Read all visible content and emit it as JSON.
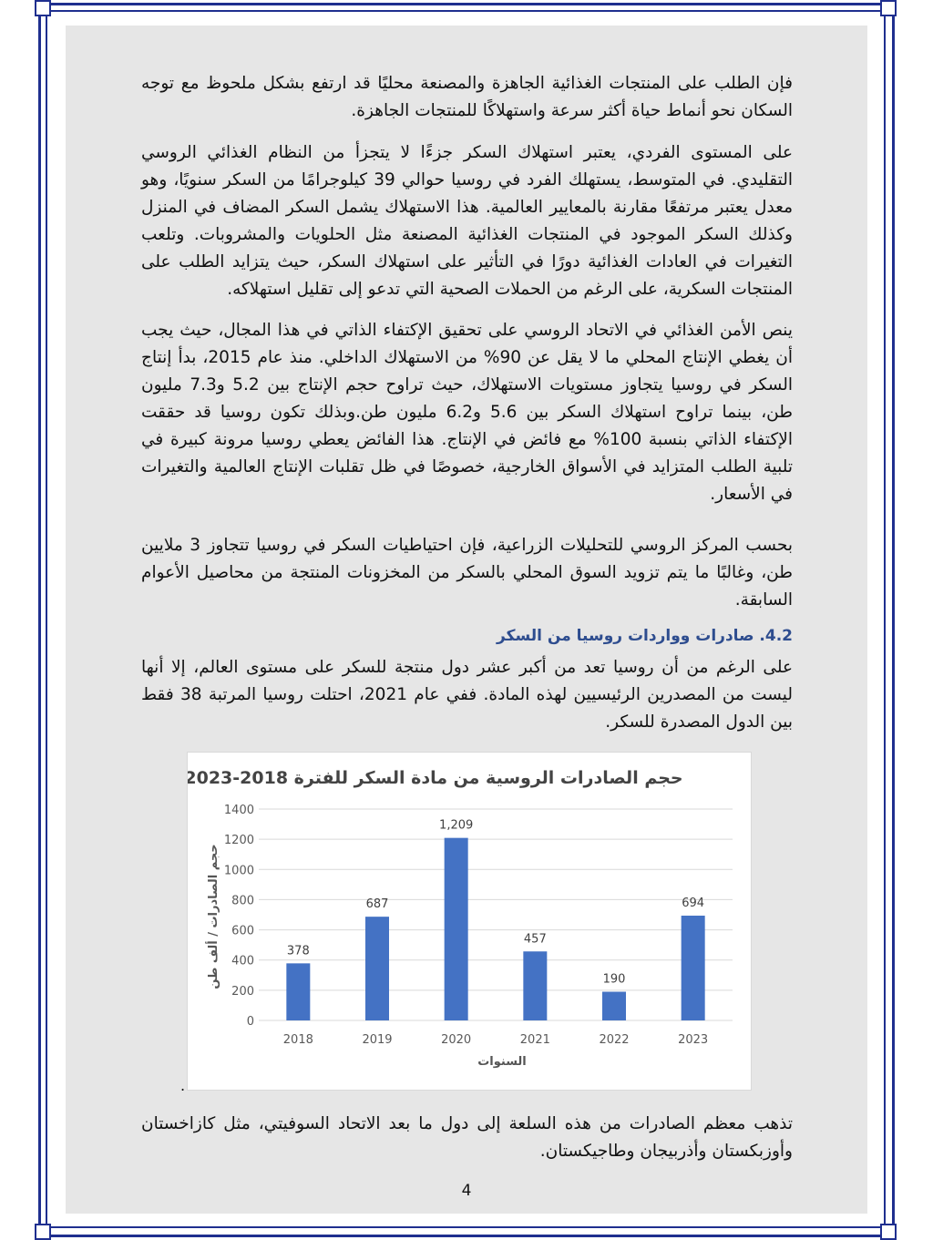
{
  "paragraphs": [
    "فإن الطلب على المنتجات الغذائية الجاهزة والمصنعة محليًا قد ارتفع بشكل ملحوظ مع توجه السكان نحو أنماط حياة أكثر سرعة واستهلاكًا للمنتجات الجاهزة.",
    "على المستوى الفردي، يعتبر استهلاك السكر جزءًا لا يتجزأ من النظام الغذائي الروسي التقليدي. في المتوسط، يستهلك الفرد في روسيا حوالي 39 كيلوجرامًا من السكر سنويًا، وهو معدل يعتبر مرتفعًا مقارنة بالمعايير العالمية. هذا الاستهلاك يشمل السكر المضاف في المنزل وكذلك السكر الموجود في المنتجات الغذائية المصنعة مثل الحلويات والمشروبات. وتلعب التغيرات في العادات الغذائية دورًا في التأثير على استهلاك السكر، حيث يتزايد الطلب على المنتجات السكرية، على الرغم من الحملات الصحية التي تدعو إلى تقليل استهلاكه.",
    "ينص الأمن الغذائي في الاتحاد الروسي على تحقيق الإكتفاء الذاتي في هذا المجال، حيث يجب أن يغطي الإنتاج المحلي ما لا يقل عن 90% من الاستهلاك الداخلي. منذ عام 2015، بدأ إنتاج السكر في روسيا يتجاوز مستويات الاستهلاك، حيث تراوح حجم الإنتاج بين 5.2 و7.3 مليون طن، بينما تراوح استهلاك السكر بين 5.6 و6.2 مليون طن.وبذلك تكون روسيا قد حققت الإكتفاء الذاتي بنسبة 100% مع فائض في الإنتاج. هذا الفائض يعطي روسيا مرونة كبيرة في تلبية الطلب المتزايد في الأسواق الخارجية، خصوصًا في ظل تقلبات الإنتاج العالمية والتغيرات في الأسعار.",
    "بحسب المركز الروسي للتحليلات الزراعية، فإن احتياطيات السكر في روسيا تتجاوز 3 ملايين طن، وغالبًا ما يتم تزويد السوق المحلي بالسكر من المخزونات المنتجة من محاصيل الأعوام السابقة."
  ],
  "section_heading": "4.2. صادرات وواردات روسيا من السكر",
  "section_paragraph": "على الرغم من أن روسيا تعد من أكبر عشر دول منتجة للسكر على مستوى العالم، إلا أنها ليست من المصدرين الرئيسيين لهذه المادة. ففي عام 2021، احتلت روسيا المرتبة 38 فقط بين الدول المصدرة للسكر.",
  "closing_paragraph": "تذهب معظم الصادرات من هذه السلعة إلى دول ما بعد الاتحاد السوفيتي، مثل كازاخستان وأوزبكستان وأذربيجان وطاجيكستان.",
  "page_number": "4",
  "colors": {
    "border": "#1f2f8f",
    "bar": "#4472c4",
    "heading": "#2e4d8f"
  },
  "chart_data": {
    "type": "bar",
    "title": "حجم الصادرات الروسية من مادة السكر للفترة 2018-2023",
    "xlabel": "السنوات",
    "ylabel": "حجم الصادرات / ألف طن",
    "categories": [
      "2018",
      "2019",
      "2020",
      "2021",
      "2022",
      "2023"
    ],
    "values": [
      378,
      687,
      1209,
      457,
      190,
      694
    ],
    "data_labels": [
      "378",
      "687",
      "1,209",
      "457",
      "190",
      "694"
    ],
    "yticks": [
      "0",
      "200",
      "400",
      "600",
      "800",
      "1000",
      "1200",
      "1400"
    ],
    "ylim": [
      0,
      1400
    ],
    "grid": true
  }
}
